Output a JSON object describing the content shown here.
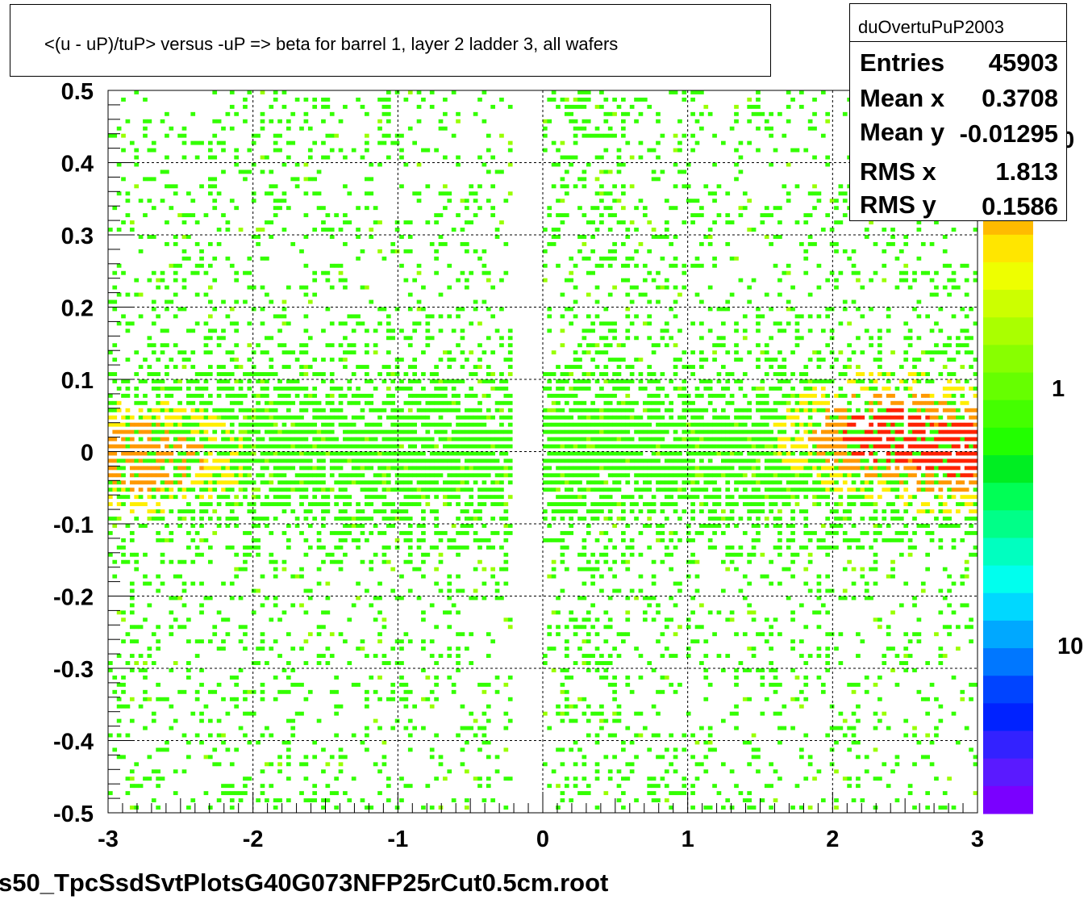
{
  "title": "<(u - uP)/tuP> versus  -uP => beta for barrel 1, layer 2 ladder 3, all wafers",
  "footer": "s50_TpcSsdSvtPlotsG40G073NFP25rCut0.5cm.root",
  "stats": {
    "name": "duOvertuPuP2003",
    "rows": [
      {
        "label": "Entries",
        "value": "45903"
      },
      {
        "label": "Mean x",
        "value": "0.3708"
      },
      {
        "label": "Mean y",
        "value": "-0.01295"
      },
      {
        "label": "RMS x",
        "value": "1.813"
      },
      {
        "label": "RMS y",
        "value": "0.1586"
      }
    ]
  },
  "palette_labels": [
    "0",
    "1",
    "10"
  ],
  "chart_data": {
    "type": "heatmap",
    "title": "<(u - uP)/tuP> versus  -uP => beta for barrel 1, layer 2 ladder 3, all wafers",
    "xlabel": "",
    "ylabel": "",
    "xlim": [
      -3,
      3
    ],
    "ylim": [
      -0.5,
      0.5
    ],
    "x_ticks": [
      "-3",
      "-2",
      "-1",
      "0",
      "1",
      "2",
      "3"
    ],
    "y_ticks": [
      "-0.5",
      "-0.4",
      "-0.3",
      "-0.2",
      "-0.1",
      "0",
      "0.1",
      "0.2",
      "0.3",
      "0.4",
      "0.5"
    ],
    "grid": true,
    "z_scale": "log",
    "colors": {
      "sparse": "#33ff00",
      "low": "#99ff00",
      "mid": "#ffee00",
      "high": "#ff9900",
      "peak": "#ff2200"
    },
    "density_profile": {
      "gap_x": [
        -0.2,
        0.0
      ],
      "peak_centers": [
        {
          "x": -2.75,
          "y": -0.01,
          "level": "high"
        },
        {
          "x": 2.4,
          "y": 0.02,
          "level": "peak"
        },
        {
          "x": 2.85,
          "y": 0.0,
          "level": "peak"
        }
      ],
      "core_band_y": [
        -0.08,
        0.08
      ]
    }
  }
}
